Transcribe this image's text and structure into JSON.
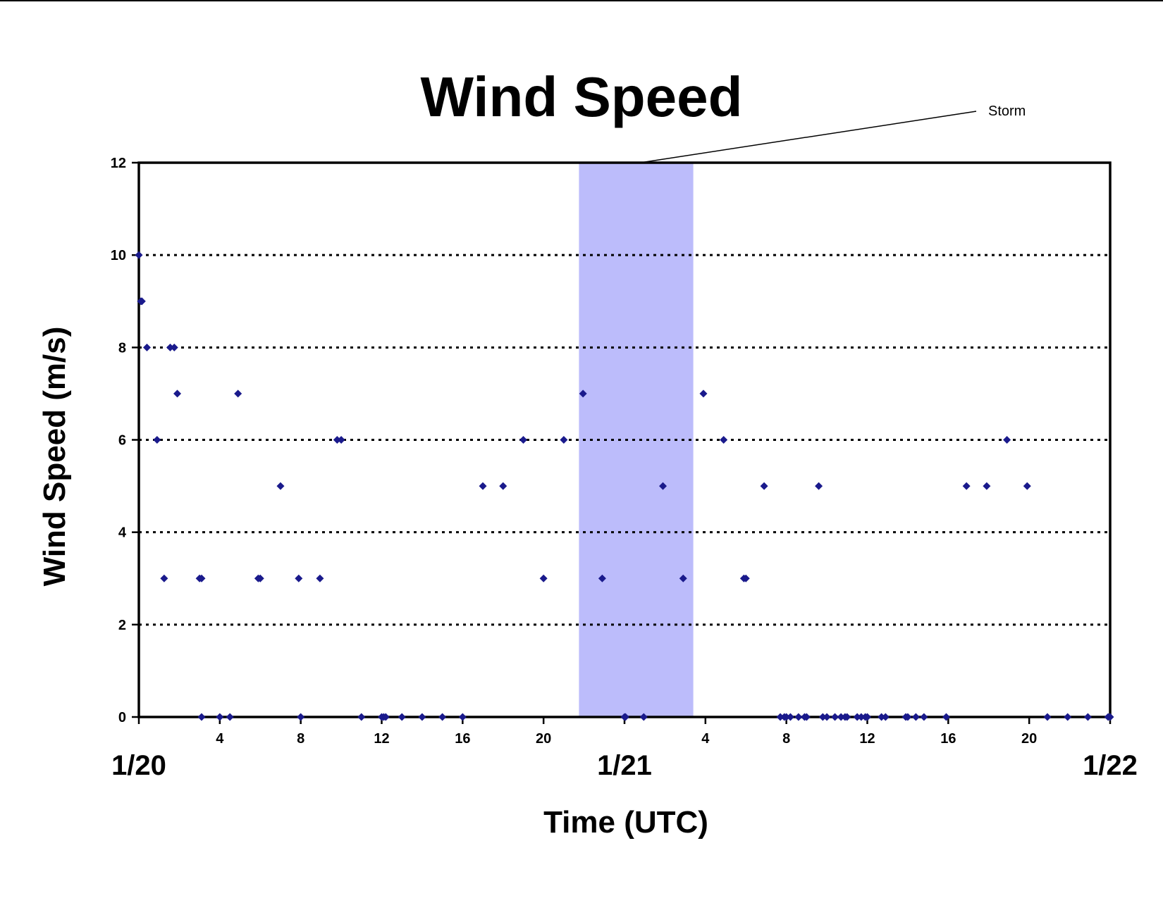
{
  "chart_data": {
    "type": "scatter",
    "title": "Wind Speed",
    "xlabel": "Time (UTC)",
    "ylabel": "Wind Speed (m/s)",
    "ylim": [
      0,
      12
    ],
    "yticks": [
      0,
      2,
      4,
      6,
      8,
      10,
      12
    ],
    "xlim_hours": [
      0,
      48
    ],
    "x_tick_hours": [
      4,
      8,
      12,
      16,
      20,
      24,
      28,
      32,
      36,
      40,
      44
    ],
    "x_tick_labels": [
      "4",
      "8",
      "12",
      "16",
      "20",
      "",
      "4",
      "8",
      "12",
      "16",
      "20"
    ],
    "date_labels": [
      {
        "hour": 0,
        "label": "1/20"
      },
      {
        "hour": 24,
        "label": "1/21"
      },
      {
        "hour": 48,
        "label": "1/22"
      }
    ],
    "grid": "horizontal dotted",
    "marker_color": "#1a1a8c",
    "annotation": {
      "label": "Storm",
      "x_start_hour": 21.75,
      "x_end_hour": 27.4,
      "color": "#bcbcfb"
    },
    "series": [
      {
        "points": [
          [
            0,
            10
          ],
          [
            0.1,
            9
          ],
          [
            0.15,
            9
          ],
          [
            0.4,
            8
          ],
          [
            0.9,
            6
          ],
          [
            1.25,
            3
          ],
          [
            1.55,
            8
          ],
          [
            1.75,
            8
          ],
          [
            1.9,
            7
          ],
          [
            3.0,
            3
          ],
          [
            3.1,
            3
          ],
          [
            3.1,
            0
          ],
          [
            4.0,
            0
          ],
          [
            4.5,
            0
          ],
          [
            4.9,
            7
          ],
          [
            5.9,
            3
          ],
          [
            6.0,
            3
          ],
          [
            7.0,
            5
          ],
          [
            7.9,
            3
          ],
          [
            8.0,
            0
          ],
          [
            8.95,
            3
          ],
          [
            9.8,
            6
          ],
          [
            10.0,
            6
          ],
          [
            11.0,
            0
          ],
          [
            12.0,
            0
          ],
          [
            12.1,
            0
          ],
          [
            12.2,
            0
          ],
          [
            13.0,
            0
          ],
          [
            14.0,
            0
          ],
          [
            15.0,
            0
          ],
          [
            16.0,
            0
          ],
          [
            17.0,
            5
          ],
          [
            18.0,
            5
          ],
          [
            19.0,
            6
          ],
          [
            20.0,
            3
          ],
          [
            21.0,
            6
          ],
          [
            21.95,
            7
          ],
          [
            22.9,
            3
          ],
          [
            24.0,
            0
          ],
          [
            24.05,
            0
          ],
          [
            24.95,
            0
          ],
          [
            25.9,
            5
          ],
          [
            26.9,
            3
          ],
          [
            27.9,
            7
          ],
          [
            28.9,
            6
          ],
          [
            29.9,
            3
          ],
          [
            30.0,
            3
          ],
          [
            30.9,
            5
          ],
          [
            31.7,
            0
          ],
          [
            31.9,
            0
          ],
          [
            32.0,
            0
          ],
          [
            32.2,
            0
          ],
          [
            32.6,
            0
          ],
          [
            32.9,
            0
          ],
          [
            33.0,
            0
          ],
          [
            33.6,
            5
          ],
          [
            33.8,
            0
          ],
          [
            34.0,
            0
          ],
          [
            34.4,
            0
          ],
          [
            34.7,
            0
          ],
          [
            34.9,
            0
          ],
          [
            35.0,
            0
          ],
          [
            35.5,
            0
          ],
          [
            35.7,
            0
          ],
          [
            35.9,
            0
          ],
          [
            36.0,
            0
          ],
          [
            36.7,
            0
          ],
          [
            36.9,
            0
          ],
          [
            37.9,
            0
          ],
          [
            38.0,
            0
          ],
          [
            38.4,
            0
          ],
          [
            38.8,
            0
          ],
          [
            39.9,
            0
          ],
          [
            40.9,
            5
          ],
          [
            41.9,
            5
          ],
          [
            42.9,
            6
          ],
          [
            43.9,
            5
          ],
          [
            44.9,
            0
          ],
          [
            45.9,
            0
          ],
          [
            46.9,
            0
          ],
          [
            47.9,
            0
          ],
          [
            48.0,
            0
          ]
        ]
      }
    ]
  }
}
